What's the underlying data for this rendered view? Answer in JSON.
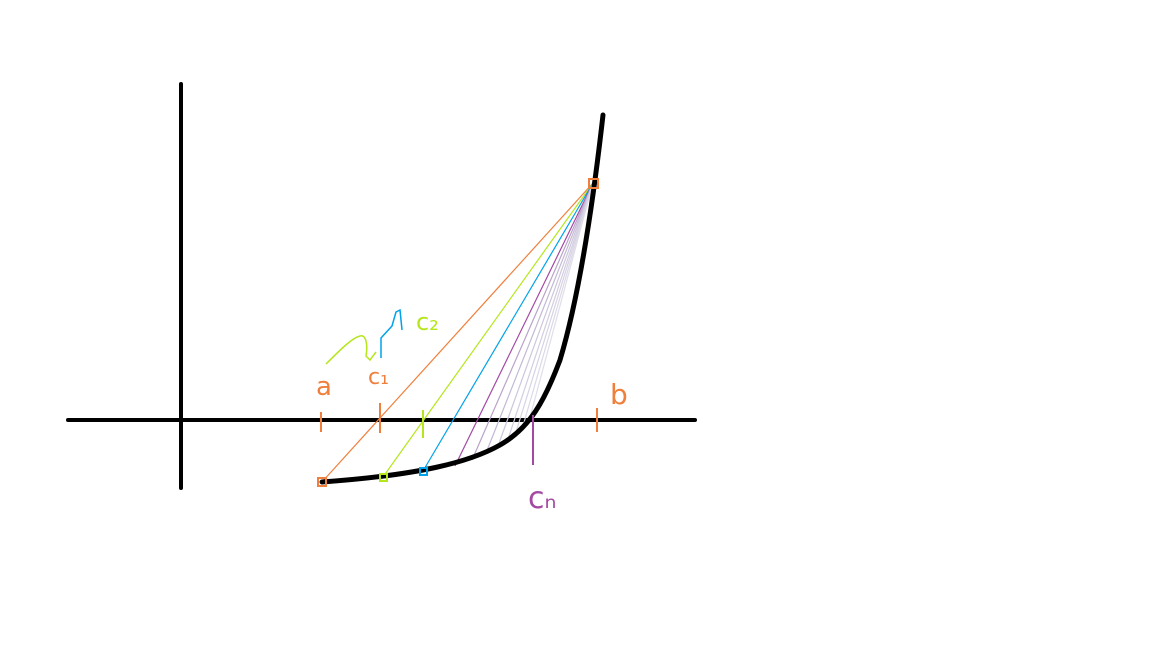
{
  "figure": {
    "description_free": true,
    "labels": {
      "a": "a",
      "c1": "c₁",
      "c2": "c₂",
      "b": "b",
      "cn": "cₙ"
    },
    "colors": {
      "background": "#ffffff",
      "axes": "#000000",
      "curve": "#000000",
      "a_secant": "#f07f3c",
      "c1_secant": "#b5e61d",
      "c2_secant": "#00a2e8",
      "cn_marker": "#a349a4",
      "later_secants": [
        "#a349a4",
        "#b9a3c9",
        "#c3b8d4",
        "#cdc6dc",
        "#d2cde0",
        "#d7d3e3",
        "#dcd8e6",
        "#e0dde9"
      ],
      "label_a": "#f07f3c",
      "label_c1": "#f07f3c",
      "label_c2": "#b5e61d",
      "label_b": "#f07f3c",
      "label_cn": "#a349a4",
      "arrow": "#b5e61d",
      "arrow_tip": "#00a2e8"
    }
  }
}
